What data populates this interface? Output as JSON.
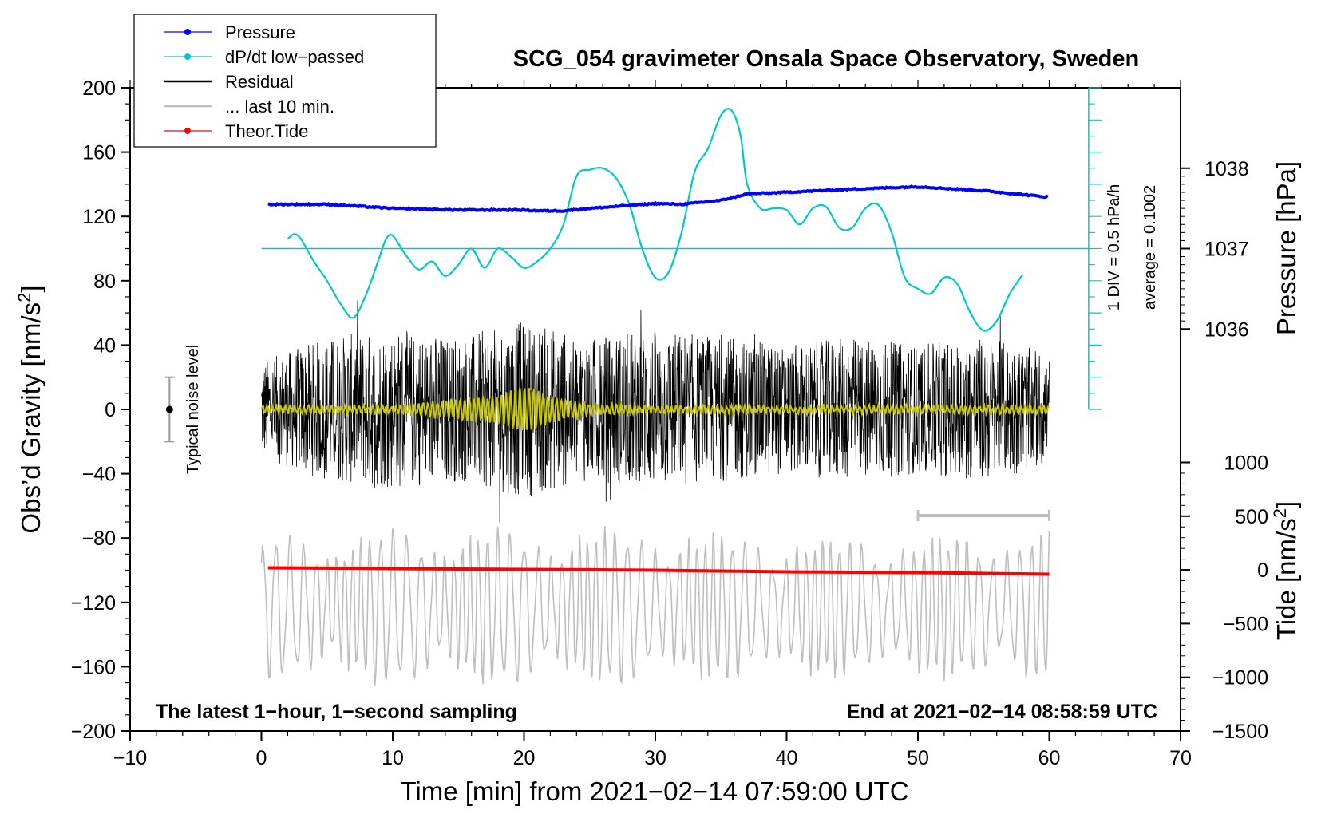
{
  "chart_data": {
    "type": "line",
    "title": "SCG_054 gravimeter Onsala Space Observatory, Sweden",
    "xlabel": "Time [min] from 2021−02−14 07:59:00 UTC",
    "ylabel_main": "Obs’d Gravity [nm/s",
    "ylabel_main_sup": "2",
    "ylabel_main_tail": "]",
    "ylabel_pressure": "Pressure [hPa]",
    "ylabel_tide": "Tide [nm/s",
    "ylabel_tide_sup": "2",
    "ylabel_tide_tail": "]",
    "xlim": [
      -10,
      70
    ],
    "ylim": [
      -200,
      200
    ],
    "x_ticks": [
      -10,
      0,
      10,
      20,
      30,
      40,
      50,
      60,
      70
    ],
    "x_tick_labels": [
      "−10",
      "0",
      "10",
      "20",
      "30",
      "40",
      "50",
      "60",
      "70"
    ],
    "y_ticks": [
      200,
      160,
      120,
      80,
      40,
      0,
      -40,
      -80,
      -120,
      -160,
      -200
    ],
    "y_tick_labels": [
      "200",
      "160",
      "120",
      "80",
      "40",
      "0",
      "−40",
      "−80",
      "−120",
      "−160",
      "−200"
    ],
    "pressure_ticks": [
      1036,
      1037,
      1038
    ],
    "pressure_tick_labels": [
      "1036",
      "1037",
      "1038"
    ],
    "tide_ticks": [
      1000,
      500,
      0,
      -500,
      -1000,
      -1500
    ],
    "tide_tick_labels": [
      "1000",
      "500",
      "0",
      "−500",
      "−1000",
      "−1500"
    ],
    "pressure_scale": {
      "hpa": [
        1036,
        1037,
        1038
      ],
      "gravity_units": [
        50,
        100,
        150
      ]
    },
    "tide_scale": {
      "nms2": [
        1000,
        -1500
      ],
      "gravity_units": [
        -33,
        -200
      ]
    },
    "legend": [
      {
        "label": "Pressure",
        "color": "#0000ff",
        "marker": true
      },
      {
        "label": "dP/dt low−passed",
        "color": "#00c8c8",
        "marker": true
      },
      {
        "label": "Residual",
        "color": "#000000",
        "marker": false
      },
      {
        "label": "... last 10 min.",
        "color": "#bebebe",
        "marker": false
      },
      {
        "label": "Theor.Tide",
        "color": "#ff0000",
        "marker": true
      }
    ],
    "annotations": {
      "left_note": "The latest 1−hour, 1−second sampling",
      "right_note": "End at 2021−02−14 08:58:59 UTC",
      "noise_label": "Typical noise level",
      "dpdt_scale": "1 DIV = 0.5 hPa/h",
      "dpdt_average": "average = 0.1002"
    },
    "noise_bar": {
      "x": -7,
      "center": 0,
      "low": -20,
      "high": 20
    },
    "last10_bar": {
      "x_start": 50,
      "x_end": 60,
      "y": -66
    },
    "dpdt_reference_line": {
      "y": 100,
      "x_start": 0,
      "x_end": 63
    },
    "dpdt_scale_bar": {
      "x": 63,
      "y_bottom": 0,
      "y_top": 200,
      "divisions": 20
    },
    "series": [
      {
        "name": "Pressure",
        "color": "#0000ff",
        "x": [
          0.5,
          5,
          10,
          15,
          20,
          21,
          23,
          25,
          30,
          32,
          35,
          37,
          40,
          45,
          50,
          55,
          60
        ],
        "y": [
          127.5,
          127.5,
          125,
          124,
          124,
          123.5,
          123.5,
          125,
          128,
          127.5,
          130,
          134,
          135,
          137,
          138.5,
          136,
          132
        ]
      },
      {
        "name": "dP/dt low−passed",
        "color": "#00c8c8",
        "x": [
          2,
          2.5,
          3,
          4,
          5,
          6,
          7,
          8,
          9,
          9.5,
          10,
          11,
          12,
          13,
          14,
          15,
          16,
          17,
          18,
          19,
          20,
          21,
          22,
          23,
          24,
          25,
          26,
          27,
          28,
          29,
          30,
          31,
          32,
          33,
          34,
          35,
          35.8,
          36.5,
          37,
          38,
          39,
          40,
          41,
          42,
          43,
          44,
          45,
          46,
          47,
          48,
          49,
          50,
          51,
          52,
          53,
          54,
          55,
          56,
          57,
          58
        ],
        "y": [
          106,
          109,
          106,
          92,
          80,
          66,
          57,
          72,
          95,
          106,
          108,
          96,
          87,
          92,
          83,
          90,
          100,
          88,
          100,
          95,
          88,
          92,
          100,
          115,
          145,
          149,
          150,
          144,
          128,
          100,
          82,
          85,
          110,
          148,
          162,
          183,
          186,
          170,
          140,
          125,
          125,
          124,
          115,
          125,
          126,
          113,
          113,
          125,
          127,
          110,
          82,
          75,
          72,
          82,
          78,
          60,
          49,
          55,
          72,
          84
        ]
      },
      {
        "name": "Residual",
        "color": "#000000",
        "x": [
          0,
          5,
          10,
          15,
          20,
          25,
          30,
          35,
          40,
          45,
          50,
          55,
          60
        ],
        "y": [
          0,
          0,
          0,
          0,
          0,
          0,
          0,
          0,
          0,
          0,
          0,
          0,
          0
        ],
        "amplitude_envelope": [
          30,
          45,
          50,
          45,
          55,
          45,
          50,
          45,
          40,
          45,
          40,
          45,
          35
        ]
      },
      {
        "name": "Residual (low−passed)",
        "color": "#c8c800",
        "x": [
          0,
          10,
          15,
          18,
          20,
          22,
          25,
          30,
          40,
          50,
          60
        ],
        "y": [
          0,
          0,
          0,
          0,
          0,
          0,
          0,
          0,
          0,
          0,
          0
        ],
        "amplitude_envelope": [
          2,
          2,
          6,
          8,
          14,
          8,
          3,
          2,
          2,
          2,
          2
        ]
      },
      {
        "name": "... last 10 min.",
        "color": "#bebebe",
        "x": [
          0,
          10,
          20,
          30,
          40,
          50,
          60
        ],
        "y": [
          -123,
          -123,
          -123,
          -123,
          -123,
          -123,
          -123
        ],
        "amplitude_envelope": [
          40,
          45,
          45,
          45,
          40,
          40,
          45
        ]
      },
      {
        "name": "Theor.Tide",
        "color": "#ff0000",
        "x": [
          0.5,
          10,
          20,
          30,
          40,
          50,
          60
        ],
        "y": [
          -98.5,
          -99,
          -99.5,
          -100,
          -101,
          -101.5,
          -102.5
        ]
      }
    ]
  }
}
